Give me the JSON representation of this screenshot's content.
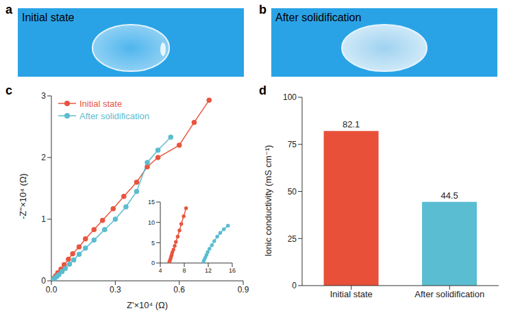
{
  "photos": [
    {
      "panel": "a",
      "label": "Initial state"
    },
    {
      "panel": "b",
      "label": "After solidification"
    }
  ],
  "chart_data": [
    {
      "type": "line",
      "panel": "c",
      "x_label": "Z'×10⁴ (Ω)",
      "y_label": "-Z''×10⁴ (Ω)",
      "xlim": [
        0,
        0.9
      ],
      "xticks": [
        {
          "value": 0,
          "label": "0.0"
        },
        0.3,
        0.6,
        0.9
      ],
      "ylim": [
        0,
        3
      ],
      "yticks": [
        0,
        1,
        2,
        3
      ],
      "legend": "upper left",
      "marker": "circle",
      "series": [
        {
          "name": "Initial state",
          "color": "#e8553f",
          "x": [
            0.005,
            0.01,
            0.02,
            0.03,
            0.045,
            0.06,
            0.08,
            0.1,
            0.13,
            0.16,
            0.2,
            0.24,
            0.29,
            0.34,
            0.4,
            0.45,
            0.5,
            0.6,
            0.67,
            0.74
          ],
          "values": [
            0.02,
            0.04,
            0.08,
            0.13,
            0.19,
            0.26,
            0.35,
            0.44,
            0.55,
            0.68,
            0.83,
            0.98,
            1.17,
            1.37,
            1.6,
            1.85,
            2.0,
            2.2,
            2.57,
            2.93
          ]
        },
        {
          "name": "After solidification",
          "color": "#5bbcd0",
          "x": [
            0.003,
            0.008,
            0.015,
            0.025,
            0.035,
            0.05,
            0.065,
            0.085,
            0.105,
            0.13,
            0.16,
            0.2,
            0.25,
            0.3,
            0.35,
            0.4,
            0.45,
            0.5,
            0.56
          ],
          "values": [
            0.005,
            0.02,
            0.04,
            0.07,
            0.1,
            0.15,
            0.2,
            0.27,
            0.34,
            0.43,
            0.53,
            0.66,
            0.83,
            1.0,
            1.2,
            1.45,
            1.92,
            2.12,
            2.33
          ]
        }
      ]
    },
    {
      "type": "line",
      "xlim": [
        4,
        16
      ],
      "xticks": [
        4,
        8,
        12,
        16
      ],
      "ylim": [
        0,
        15
      ],
      "yticks": [
        0,
        5,
        10,
        15
      ],
      "marker": "circle",
      "series": [
        {
          "color": "#e8553f",
          "x": [
            5.5,
            5.6,
            5.7,
            5.8,
            5.9,
            6.0,
            6.2,
            6.4,
            6.6,
            6.9,
            7.2,
            7.5,
            7.9,
            8.3
          ],
          "values": [
            0.2,
            0.6,
            1.0,
            1.5,
            2.0,
            2.6,
            3.3,
            4.2,
            5.2,
            6.5,
            8.0,
            9.6,
            11.5,
            13.5
          ]
        },
        {
          "color": "#5bbcd0",
          "x": [
            11.2,
            11.3,
            11.5,
            11.7,
            11.9,
            12.2,
            12.6,
            13.0,
            13.5,
            14.0,
            14.6,
            15.3
          ],
          "values": [
            0.2,
            0.7,
            1.3,
            2.0,
            2.7,
            3.5,
            4.4,
            5.4,
            6.5,
            7.4,
            8.3,
            9.2
          ]
        }
      ]
    },
    {
      "type": "bar",
      "panel": "d",
      "y_label": "Ionic conductivity (mS cm⁻¹)",
      "categories": [
        "Initial state",
        "After solidification"
      ],
      "values": [
        82.1,
        44.5
      ],
      "colors": [
        "#e8503a",
        "#5bbdd2"
      ],
      "ylim": [
        0,
        100
      ],
      "yticks": [
        0,
        25,
        50,
        75,
        100
      ],
      "data_labels": true
    }
  ]
}
